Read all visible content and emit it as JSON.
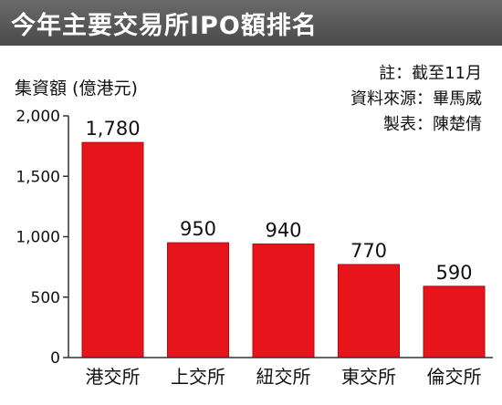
{
  "title": "今年主要交易所IPO額排名",
  "unit_label": "集資額 (億港元)",
  "notes": [
    "註：截至11月",
    "資料來源：畢馬威",
    "製表：陳楚倩"
  ],
  "colors": {
    "bar": "#e8141c",
    "bar_edge": "#b40a10",
    "axis": "#333333",
    "title_bg": "#555555"
  },
  "chart_data": {
    "type": "bar",
    "title": "今年主要交易所IPO額排名",
    "ylabel": "集資額 (億港元)",
    "xlabel": "",
    "categories": [
      "港交所",
      "上交所",
      "紐交所",
      "東交所",
      "倫交所"
    ],
    "values": [
      1780,
      950,
      940,
      770,
      590
    ],
    "value_labels": [
      "1,780",
      "950",
      "940",
      "770",
      "590"
    ],
    "ylim": [
      0,
      2000
    ],
    "yticks": [
      0,
      500,
      1000,
      1500,
      2000
    ],
    "ytick_labels": [
      "0",
      "500",
      "1,000",
      "1,500",
      "2,000"
    ],
    "grid": false,
    "legend": "none"
  }
}
